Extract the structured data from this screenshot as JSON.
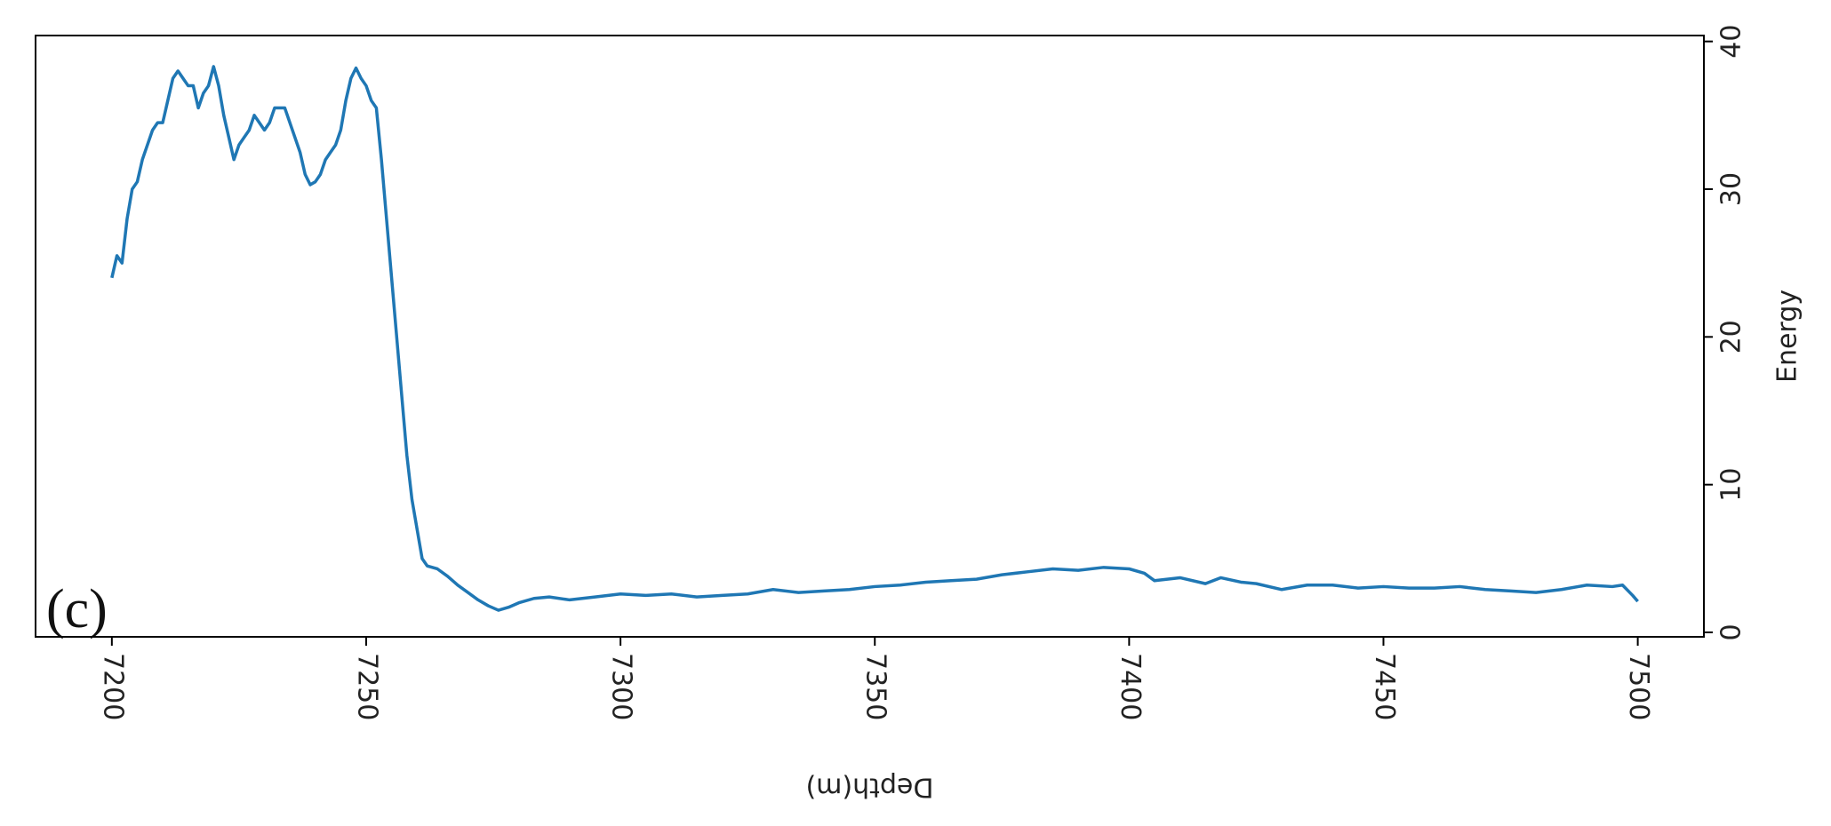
{
  "chart_data": {
    "type": "line",
    "panel_label": "(c)",
    "xlabel": "Depth(m)",
    "ylabel": "Energy",
    "y_axis_side": "right",
    "xlim": [
      7185,
      7513
    ],
    "xticks": [
      7200,
      7250,
      7300,
      7350,
      7400,
      7450,
      7500
    ],
    "ylim": [
      -0.3,
      40.4
    ],
    "yticks": [
      0,
      10,
      20,
      30,
      40
    ],
    "grid": false,
    "series": [
      {
        "color": "#1f77b4",
        "x": [
          7200,
          7201,
          7202,
          7203,
          7204,
          7205,
          7206,
          7208,
          7209,
          7210,
          7211,
          7212,
          7213,
          7214,
          7215,
          7216,
          7217,
          7218,
          7219,
          7220,
          7221,
          7222,
          7223,
          7224,
          7225,
          7226,
          7227,
          7228,
          7229,
          7230,
          7231,
          7232,
          7233,
          7234,
          7235,
          7236,
          7237,
          7238,
          7239,
          7240,
          7241,
          7242,
          7243,
          7244,
          7245,
          7246,
          7247,
          7248,
          7249,
          7250,
          7251,
          7252,
          7253,
          7254,
          7255,
          7256,
          7257,
          7258,
          7259,
          7260,
          7261,
          7262,
          7264,
          7266,
          7268,
          7270,
          7272,
          7274,
          7276,
          7278,
          7280,
          7283,
          7286,
          7290,
          7295,
          7300,
          7305,
          7310,
          7315,
          7320,
          7325,
          7330,
          7335,
          7340,
          7345,
          7350,
          7355,
          7360,
          7365,
          7370,
          7375,
          7380,
          7385,
          7390,
          7395,
          7400,
          7403,
          7405,
          7410,
          7415,
          7418,
          7422,
          7425,
          7430,
          7435,
          7440,
          7445,
          7450,
          7455,
          7460,
          7465,
          7470,
          7475,
          7480,
          7485,
          7490,
          7495,
          7497,
          7499,
          7500
        ],
        "values": [
          24,
          25.5,
          25,
          28,
          30,
          30.5,
          32,
          34,
          34.5,
          34.5,
          36,
          37.5,
          38,
          37.5,
          37,
          37,
          35.5,
          36.5,
          37,
          38.3,
          37,
          35,
          33.5,
          32,
          33,
          33.5,
          34,
          35,
          34.5,
          34,
          34.5,
          35.5,
          35.5,
          35.5,
          34.5,
          33.5,
          32.5,
          31,
          30.3,
          30.5,
          31,
          32,
          32.5,
          33,
          34,
          36,
          37.5,
          38.2,
          37.5,
          37,
          36,
          35.5,
          32,
          28,
          24,
          20,
          16,
          12,
          9,
          7,
          5,
          4.5,
          4.3,
          3.8,
          3.2,
          2.7,
          2.2,
          1.8,
          1.5,
          1.7,
          2,
          2.3,
          2.4,
          2.2,
          2.4,
          2.6,
          2.5,
          2.6,
          2.4,
          2.5,
          2.6,
          2.9,
          2.7,
          2.8,
          2.9,
          3.1,
          3.2,
          3.4,
          3.5,
          3.6,
          3.9,
          4.1,
          4.3,
          4.2,
          4.4,
          4.3,
          4,
          3.5,
          3.7,
          3.3,
          3.7,
          3.4,
          3.3,
          2.9,
          3.2,
          3.2,
          3,
          3.1,
          3,
          3,
          3.1,
          2.9,
          2.8,
          2.7,
          2.9,
          3.2,
          3.1,
          3.2,
          2.5,
          2.1
        ]
      }
    ]
  }
}
